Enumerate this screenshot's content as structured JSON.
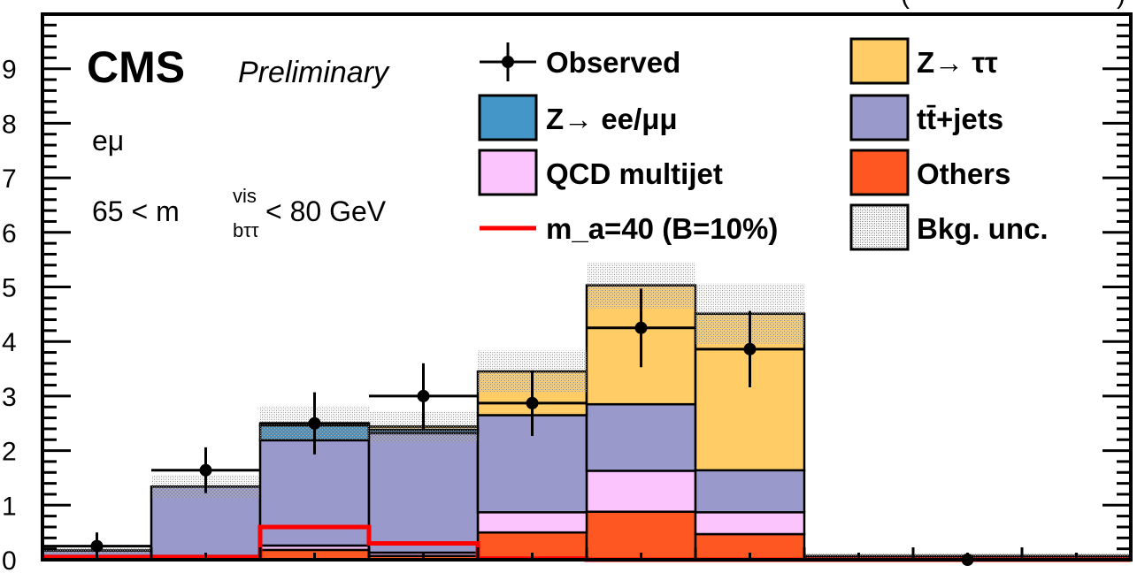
{
  "chart_data": {
    "type": "bar",
    "stacked": true,
    "ylim": [
      0,
      10
    ],
    "y_ticks": [
      "0",
      "1",
      "2",
      "3",
      "4",
      "5",
      "6",
      "7",
      "8",
      "9"
    ],
    "x_tick_labels_visible": false,
    "header_text_fragment": "(",
    "header_text_fragment2": ")",
    "bins": 10,
    "series": [
      {
        "name": "Others",
        "color": "#ff5722",
        "values": [
          0.07,
          0.07,
          0.18,
          0.07,
          0.5,
          0.88,
          0.47,
          0.04,
          0.04,
          0.04
        ]
      },
      {
        "name": "QCD multijet",
        "color": "#fcc4fc",
        "values": [
          0.0,
          0.0,
          0.08,
          0.06,
          0.37,
          0.75,
          0.4,
          0.0,
          0.0,
          0.0
        ]
      },
      {
        "name": "tt̄+jets",
        "color": "#9999cc",
        "values": [
          0.1,
          1.27,
          1.93,
          2.19,
          1.78,
          1.22,
          0.77,
          0.03,
          0.03,
          0.03
        ]
      },
      {
        "name": "Z→ ee/μμ",
        "color": "#4496c8",
        "values": [
          0.0,
          0.0,
          0.27,
          0.06,
          0.0,
          0.0,
          0.0,
          0.0,
          0.0,
          0.0
        ]
      },
      {
        "name": "Z→ ττ",
        "color": "#ffcc66",
        "values": [
          0.0,
          0.0,
          0.04,
          0.06,
          0.8,
          2.18,
          2.87,
          0.0,
          0.0,
          0.0
        ]
      }
    ],
    "order_bottom_to_top": [
      "Others",
      "QCD multijet",
      "tt̄+jets",
      "Z→ ee/μμ",
      "Z→ ττ"
    ],
    "bkg_unc": [
      0.05,
      0.2,
      0.3,
      0.28,
      0.38,
      0.42,
      0.55,
      0.06,
      0.06,
      0.06
    ],
    "signal": {
      "name": "m_a=40 (B=10%)",
      "color": "#ff0000",
      "values": [
        0.05,
        0.05,
        0.6,
        0.3,
        0.02,
        0.0,
        0.0,
        0.0,
        0.0,
        0.0
      ]
    },
    "observed": {
      "name": "Observed",
      "values": [
        0.25,
        1.64,
        2.5,
        3.0,
        2.87,
        4.25,
        3.86,
        null,
        0.0,
        null
      ],
      "err": [
        0.25,
        0.42,
        0.57,
        0.6,
        0.6,
        0.72,
        0.7,
        0,
        0,
        0
      ]
    },
    "legend": [
      {
        "key": "observed",
        "label": "Observed",
        "kind": "marker"
      },
      {
        "key": "ztt",
        "label": "Z→ ττ",
        "kind": "box",
        "color": "#ffcc66"
      },
      {
        "key": "zll",
        "label": "Z→ ee/μμ",
        "kind": "box",
        "color": "#4496c8"
      },
      {
        "key": "tt",
        "label": "tt̄+jets",
        "kind": "box",
        "color": "#9999cc"
      },
      {
        "key": "qcd",
        "label": "QCD multijet",
        "kind": "box",
        "color": "#fcc4fc"
      },
      {
        "key": "oth",
        "label": "Others",
        "kind": "box",
        "color": "#ff5722"
      },
      {
        "key": "sig",
        "label": "m_a=40 (B=10%)",
        "kind": "line",
        "color": "#ff0000"
      },
      {
        "key": "unc",
        "label": "Bkg. unc.",
        "kind": "hatch"
      }
    ],
    "annotations": {
      "experiment": "CMS",
      "status": "Preliminary",
      "channel": "eμ",
      "mass_window_pre": "65 < m",
      "mass_window_sup": "vis",
      "mass_window_sub": "bττ",
      "mass_window_post": " < 80 GeV"
    }
  }
}
